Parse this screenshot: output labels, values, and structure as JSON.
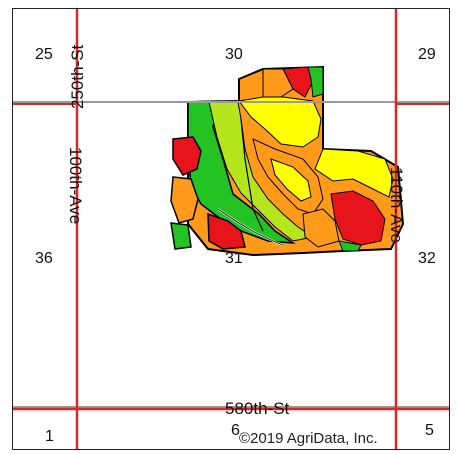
{
  "map": {
    "sections": {
      "s25": "25",
      "s30": "30",
      "s29": "29",
      "s36": "36",
      "s31": "31",
      "s32": "32",
      "s1": "1",
      "s6": "6",
      "s5": "5"
    },
    "roads": {
      "north_road": "250th-St",
      "west_road": "100th-Ave",
      "east_road": "110th-Ave",
      "south_road": "580th-St"
    },
    "copyright": "©2019 AgriData, Inc.",
    "colors": {
      "section_line": "#d62828",
      "township_line": "#9a9a9a",
      "zone_high": "#22c322",
      "zone_upper_mid": "#b5e61d",
      "zone_mid": "#ffff00",
      "zone_lower_mid": "#ff9a1a",
      "zone_low": "#e8141c",
      "boundary": "#000000"
    }
  }
}
